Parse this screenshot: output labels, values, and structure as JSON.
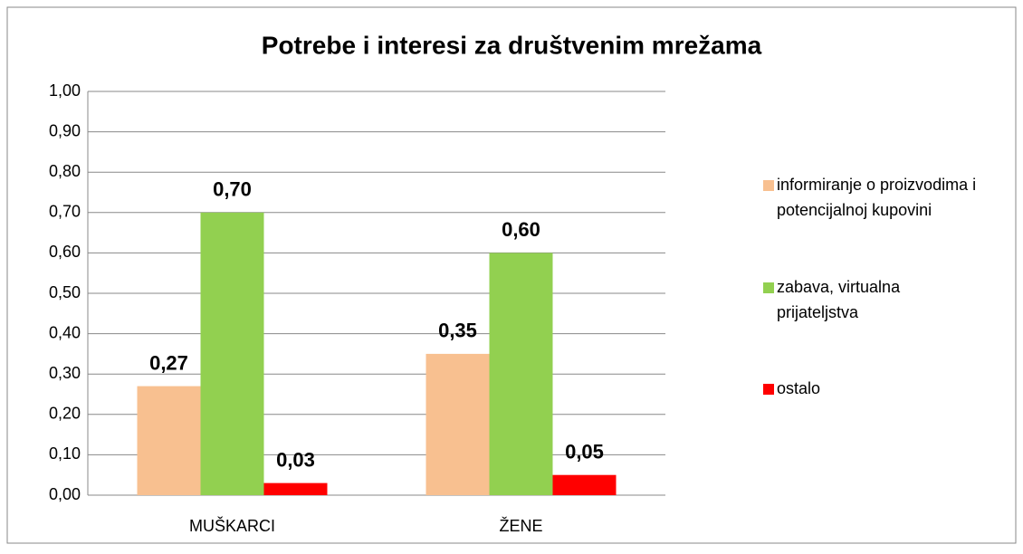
{
  "chart_data": {
    "type": "bar",
    "title": "Potrebe i interesi za društvenim mrežama",
    "categories": [
      "MUŠKARCI",
      "ŽENE"
    ],
    "series": [
      {
        "name": "informiranje o proizvodima i potencijalnoj kupovini",
        "color": "#f8c090",
        "values": [
          0.27,
          0.35
        ],
        "value_labels": [
          "0,27",
          "0,35"
        ]
      },
      {
        "name": "zabava, virtualna prijateljstva",
        "color": "#92d050",
        "values": [
          0.7,
          0.6
        ],
        "value_labels": [
          "0,70",
          "0,60"
        ]
      },
      {
        "name": "ostalo",
        "color": "#ff0000",
        "values": [
          0.03,
          0.05
        ],
        "value_labels": [
          "0,03",
          "0,05"
        ]
      }
    ],
    "ylim": [
      0,
      1
    ],
    "yticks": [
      {
        "value": 0,
        "label": "0,00"
      },
      {
        "value": 0.1,
        "label": "0,10"
      },
      {
        "value": 0.2,
        "label": "0,20"
      },
      {
        "value": 0.3,
        "label": "0,30"
      },
      {
        "value": 0.4,
        "label": "0,40"
      },
      {
        "value": 0.5,
        "label": "0,50"
      },
      {
        "value": 0.6,
        "label": "0,60"
      },
      {
        "value": 0.7,
        "label": "0,70"
      },
      {
        "value": 0.8,
        "label": "0,80"
      },
      {
        "value": 0.9,
        "label": "0,90"
      },
      {
        "value": 1,
        "label": "1,00"
      }
    ],
    "grid": true,
    "legend": "right"
  }
}
